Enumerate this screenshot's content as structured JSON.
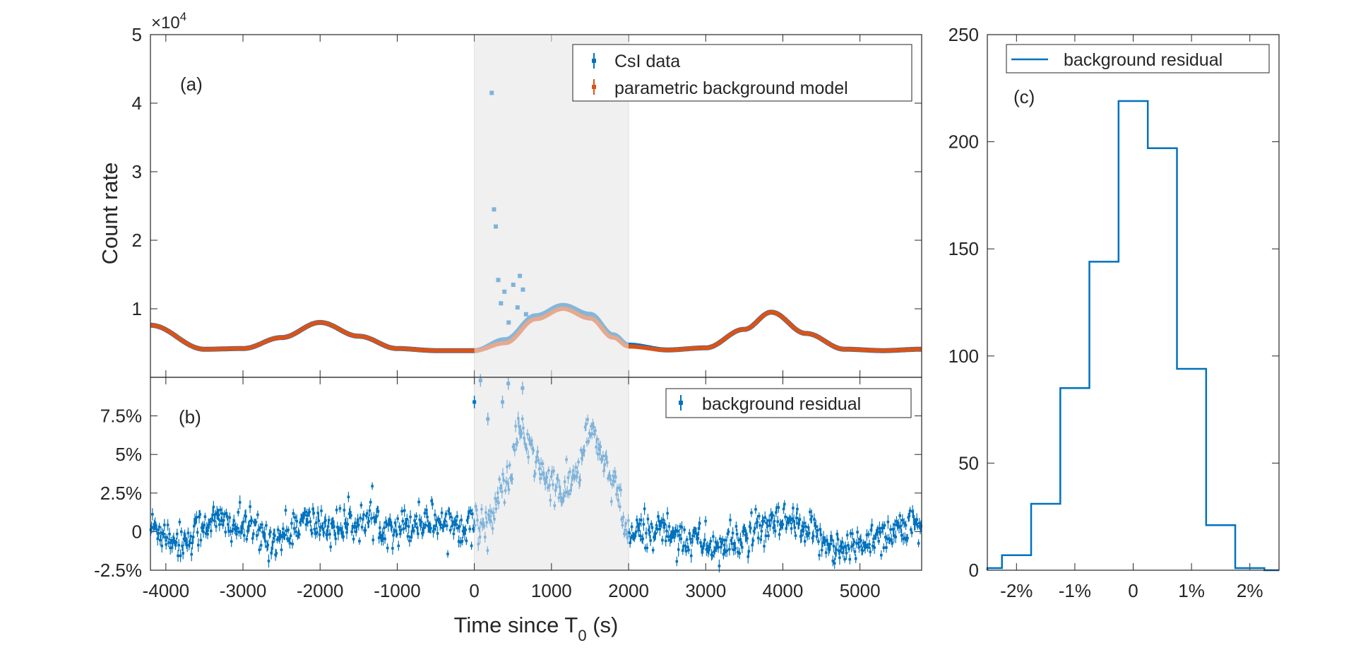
{
  "chart_data": [
    {
      "id": "a",
      "type": "scatter",
      "panel_label": "(a)",
      "ylabel": "Count rate",
      "y_exponent_base": "×10",
      "y_exponent_power": "4",
      "xlim": [
        -4200,
        5800
      ],
      "ylim": [
        0,
        5
      ],
      "x_ticks": [
        -4000,
        -3000,
        -2000,
        -1000,
        0,
        1000,
        2000,
        3000,
        4000,
        5000
      ],
      "y_ticks": [
        1,
        2,
        3,
        4,
        5
      ],
      "y_tick_labels": [
        "1",
        "2",
        "3",
        "4",
        "5"
      ],
      "shaded_region": [
        0,
        2000
      ],
      "legend": [
        "CsI data",
        "parametric background model"
      ],
      "legend_position": "top-right",
      "series": [
        {
          "name": "CsI data",
          "color": "#0072BD",
          "x": [
            -4200,
            -3500,
            -3000,
            -2500,
            -2000,
            -1500,
            -1000,
            -500,
            0,
            400,
            800,
            1150,
            1500,
            1800,
            2000,
            2500,
            3000,
            3500,
            3850,
            4300,
            4800,
            5300,
            5800
          ],
          "y": [
            0.76,
            0.41,
            0.42,
            0.58,
            0.8,
            0.6,
            0.42,
            0.39,
            0.39,
            0.55,
            0.9,
            1.05,
            0.92,
            0.62,
            0.47,
            0.4,
            0.43,
            0.7,
            0.95,
            0.64,
            0.41,
            0.39,
            0.41
          ],
          "burst_points_x": [
            225,
            255,
            278,
            310,
            345,
            390,
            445,
            505,
            560,
            590,
            630,
            670
          ],
          "burst_points_y": [
            4.15,
            2.45,
            2.2,
            1.42,
            1.08,
            1.25,
            0.8,
            1.35,
            1.02,
            1.48,
            1.28,
            0.92
          ]
        },
        {
          "name": "parametric background model",
          "color": "#D95319",
          "x": [
            -4200,
            -3500,
            -3000,
            -2500,
            -2000,
            -1500,
            -1000,
            -500,
            0,
            400,
            800,
            1150,
            1500,
            1800,
            2000,
            2500,
            3000,
            3500,
            3850,
            4300,
            4800,
            5300,
            5800
          ],
          "y": [
            0.76,
            0.41,
            0.42,
            0.58,
            0.8,
            0.6,
            0.42,
            0.39,
            0.39,
            0.5,
            0.85,
            1.0,
            0.86,
            0.58,
            0.45,
            0.4,
            0.43,
            0.7,
            0.95,
            0.64,
            0.41,
            0.39,
            0.41
          ]
        }
      ]
    },
    {
      "id": "b",
      "type": "scatter",
      "panel_label": "(b)",
      "xlabel": "Time since T",
      "xlabel_sub": "0",
      "xlabel_suffix": " (s)",
      "xlim": [
        -4200,
        5800
      ],
      "ylim": [
        -2.5,
        10
      ],
      "x_ticks": [
        -4000,
        -3000,
        -2000,
        -1000,
        0,
        1000,
        2000,
        3000,
        4000,
        5000
      ],
      "x_tick_labels": [
        "-4000",
        "-3000",
        "-2000",
        "-1000",
        "0",
        "1000",
        "2000",
        "3000",
        "4000",
        "5000"
      ],
      "y_ticks": [
        -2.5,
        0,
        2.5,
        5,
        7.5
      ],
      "y_tick_labels": [
        "-2.5%",
        "0",
        "2.5%",
        "5%",
        "7.5%"
      ],
      "shaded_region": [
        0,
        2000
      ],
      "legend": [
        "background residual"
      ],
      "legend_position": "top-right",
      "series": [
        {
          "name": "background residual",
          "color": "#0072BD",
          "x": [
            -4200,
            -3800,
            -3400,
            -3000,
            -2600,
            -2200,
            -1800,
            -1400,
            -1000,
            -600,
            -200,
            0,
            200,
            400,
            600,
            800,
            1000,
            1150,
            1300,
            1500,
            1650,
            1800,
            2000,
            2400,
            2800,
            3200,
            3600,
            4000,
            4400,
            4800,
            5200,
            5600,
            5800
          ],
          "y": [
            0.3,
            -0.6,
            0.7,
            0.3,
            -0.5,
            0.6,
            0.3,
            0.7,
            0.3,
            0.8,
            0.5,
            0.4,
            0.8,
            3.0,
            6.5,
            4.5,
            3.0,
            2.5,
            3.5,
            6.5,
            5.0,
            3.0,
            -0.2,
            0.2,
            -0.5,
            -1.0,
            -0.2,
            0.6,
            -0.2,
            -1.2,
            -0.3,
            0.3,
            0.2
          ],
          "outliers_x": [
            0,
            80,
            175,
            365,
            440,
            625
          ],
          "outliers_y": [
            8.4,
            9.8,
            7.3,
            8.4,
            9.6,
            9.3
          ]
        }
      ]
    },
    {
      "id": "c",
      "type": "histogram",
      "panel_label": "(c)",
      "xlim": [
        -2.5,
        2.5
      ],
      "ylim": [
        0,
        250
      ],
      "x_ticks": [
        -2,
        -1,
        0,
        1,
        2
      ],
      "x_tick_labels": [
        "-2%",
        "-1%",
        "0",
        "1%",
        "2%"
      ],
      "y_ticks": [
        0,
        50,
        100,
        150,
        200,
        250
      ],
      "y_tick_labels": [
        "0",
        "50",
        "100",
        "150",
        "200",
        "250"
      ],
      "legend": [
        "background residual"
      ],
      "legend_position": "top-right",
      "bin_edges": [
        -2.5,
        -2.25,
        -1.75,
        -1.25,
        -0.75,
        -0.25,
        0.25,
        0.75,
        1.25,
        1.75,
        2.25,
        2.5
      ],
      "counts": [
        1,
        7,
        31,
        85,
        144,
        219,
        197,
        94,
        21,
        1,
        0
      ],
      "color": "#0072BD"
    }
  ]
}
